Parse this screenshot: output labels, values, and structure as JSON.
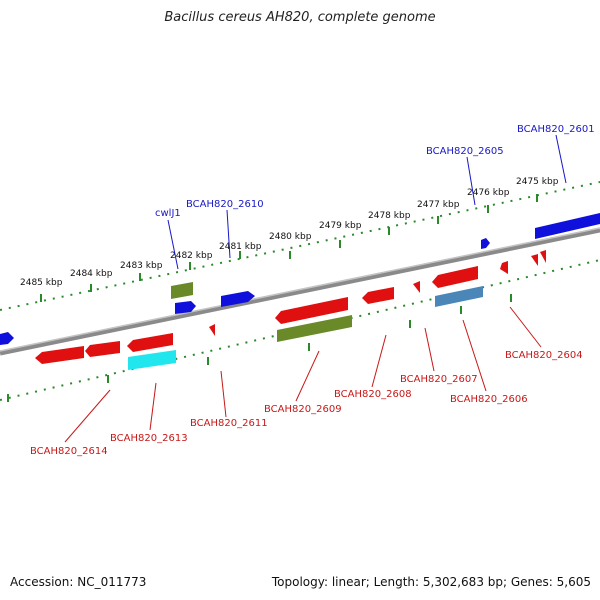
{
  "title": "Bacillus cereus AH820, complete genome",
  "footer": {
    "accession": "Accession: NC_011773",
    "summary": "Topology: linear; Length: 5,302,683 bp; Genes: 5,605"
  },
  "colors": {
    "forward_gene": "#1010dd",
    "reverse_gene": "#e01010",
    "olive": "#6a8a2a",
    "cyan": "#22e6ee",
    "steel": "#4a86b8",
    "tick": "#2a8a2a",
    "label_top": "#1818c8",
    "label_bottom": "#c81818"
  },
  "scale_labels": [
    "2485 kbp",
    "2484 kbp",
    "2483 kbp",
    "2482 kbp",
    "2481 kbp",
    "2480 kbp",
    "2479 kbp",
    "2478 kbp",
    "2477 kbp",
    "2476 kbp",
    "2475 kbp"
  ],
  "top_labels": [
    "cwlJ1",
    "BCAH820_2610",
    "BCAH820_2605",
    "BCAH820_2601"
  ],
  "bottom_labels": [
    "BCAH820_2614",
    "BCAH820_2613",
    "BCAH820_2611",
    "BCAH820_2609",
    "BCAH820_2608",
    "BCAH820_2607",
    "BCAH820_2606",
    "BCAH820_2604"
  ]
}
